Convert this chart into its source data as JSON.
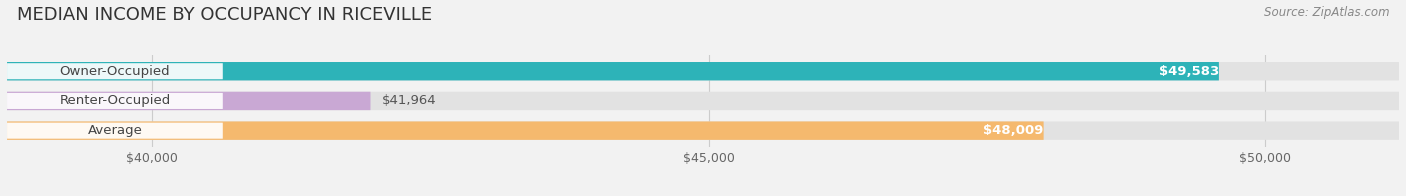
{
  "title": "MEDIAN INCOME BY OCCUPANCY IN RICEVILLE",
  "source": "Source: ZipAtlas.com",
  "categories": [
    "Owner-Occupied",
    "Renter-Occupied",
    "Average"
  ],
  "values": [
    49583,
    41964,
    48009
  ],
  "bar_colors": [
    "#2db3b8",
    "#c9a8d4",
    "#f5b96e"
  ],
  "label_colors": [
    "#ffffff",
    "#555555",
    "#ffffff"
  ],
  "value_inside": [
    true,
    false,
    true
  ],
  "xmin": 38700,
  "xmax": 51200,
  "xticks": [
    40000,
    45000,
    50000
  ],
  "xtick_labels": [
    "$40,000",
    "$45,000",
    "$50,000"
  ],
  "bar_height": 0.62,
  "background_color": "#f2f2f2",
  "bar_bg_color": "#e2e2e2",
  "title_fontsize": 13,
  "label_fontsize": 9.5,
  "value_fontsize": 9.5
}
